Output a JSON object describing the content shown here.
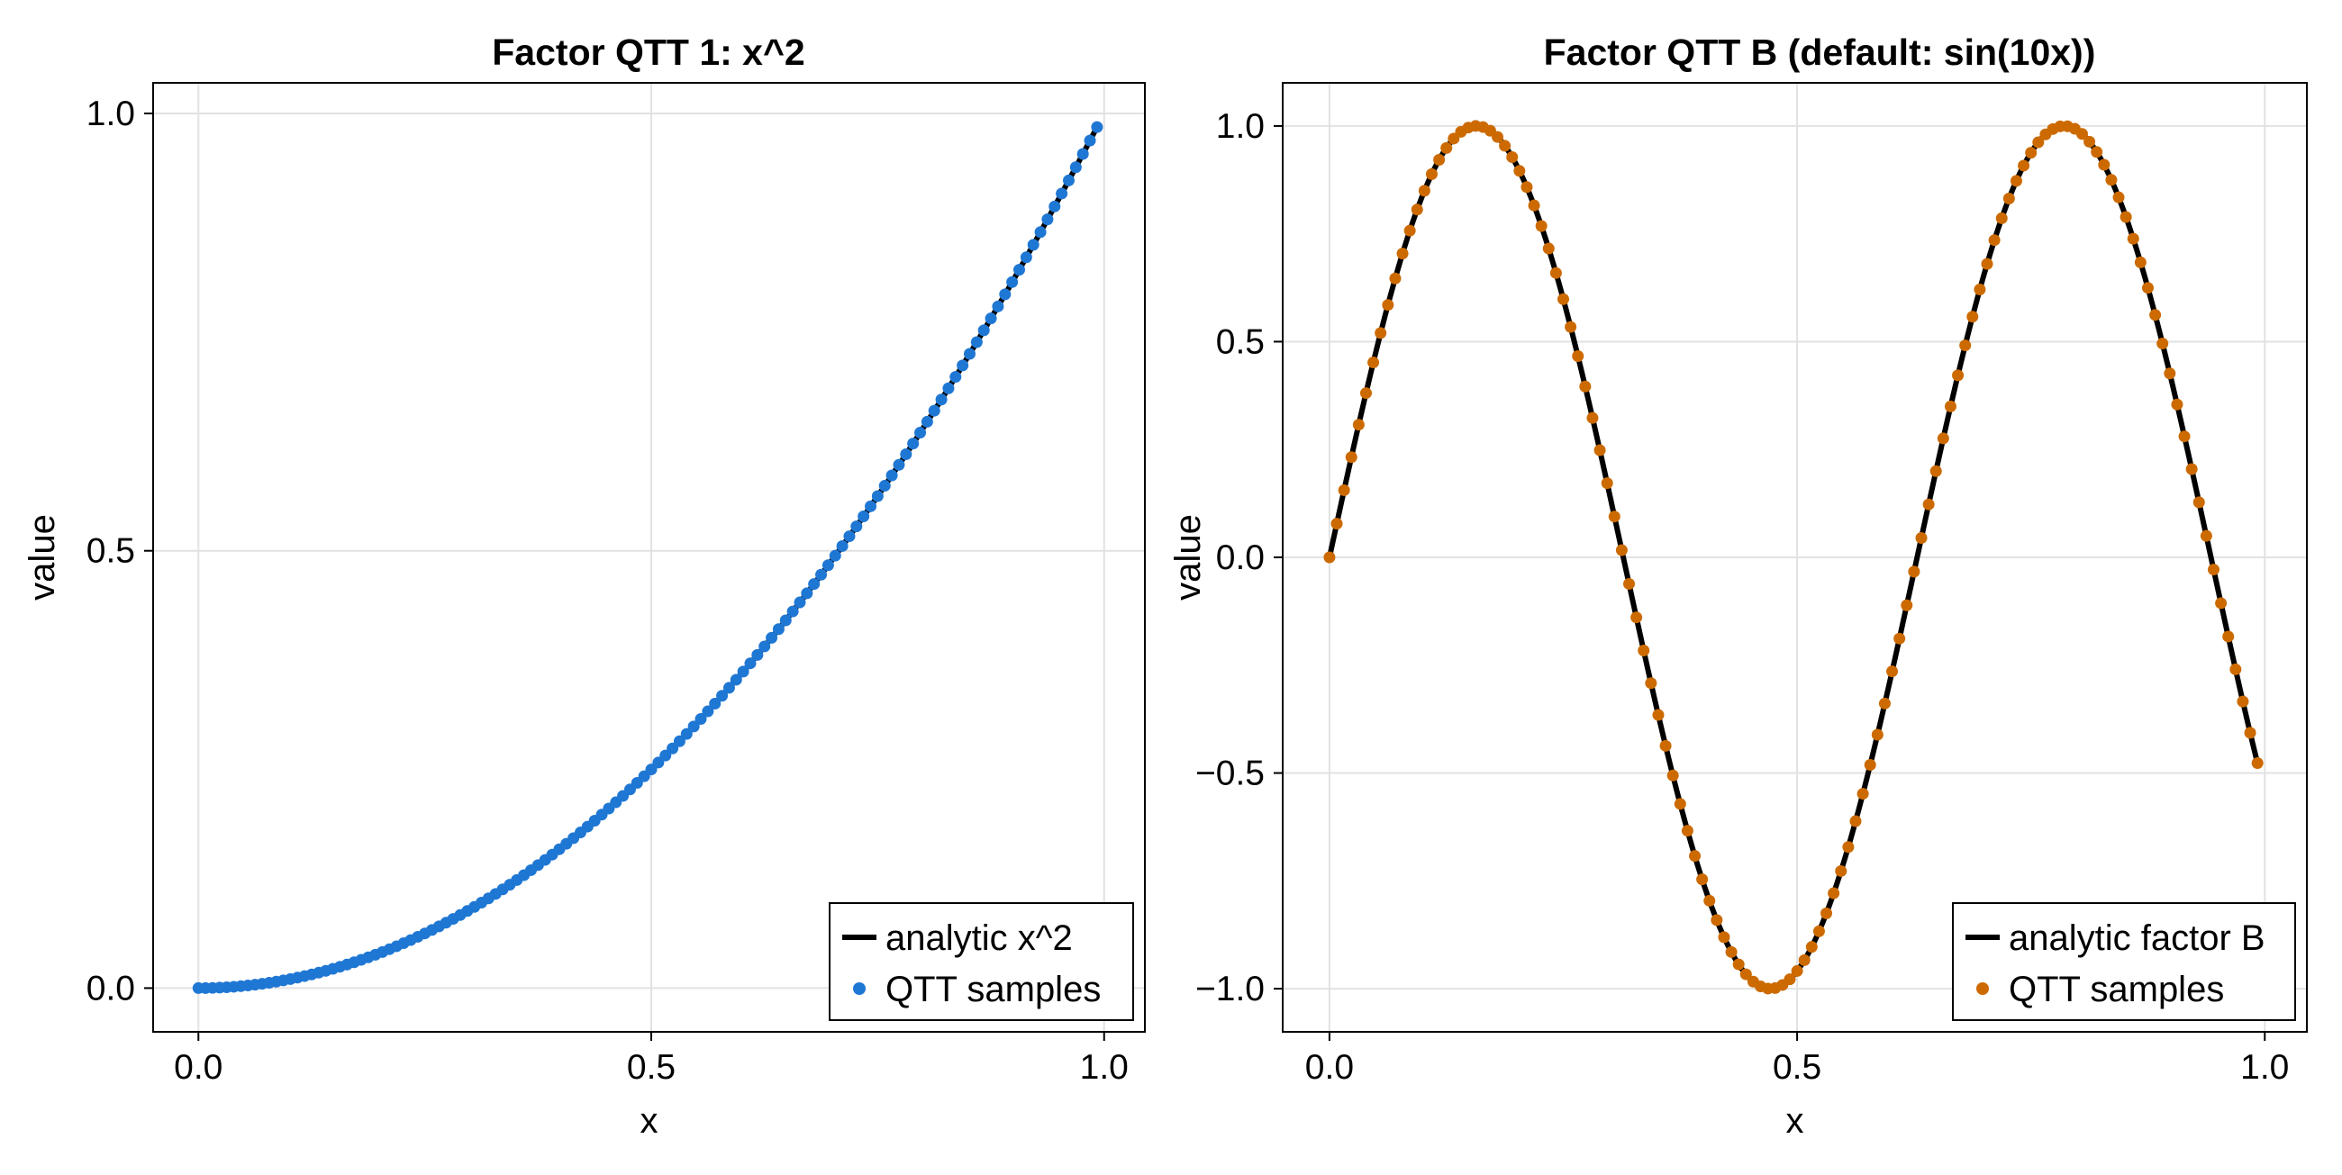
{
  "chart_data": [
    {
      "type": "line",
      "title": "Factor QTT 1: x^2",
      "xlabel": "x",
      "ylabel": "value",
      "xlim": [
        -0.05,
        1.045
      ],
      "ylim": [
        -0.05,
        1.035
      ],
      "xticks": [
        0.0,
        0.5,
        1.0
      ],
      "yticks": [
        0.0,
        0.5,
        1.0
      ],
      "xtick_labels": [
        "0.0",
        "0.5",
        "1.0"
      ],
      "ytick_labels": [
        "0.0",
        "0.5",
        "1.0"
      ],
      "grid": true,
      "legend_position": "bottom-right",
      "function": "x^2",
      "x_range": [
        0.0,
        0.9921875
      ],
      "n_samples": 128,
      "series": [
        {
          "name": "analytic x^2",
          "kind": "line",
          "color": "#000000"
        },
        {
          "name": "QTT samples",
          "kind": "scatter",
          "color": "#1f77d4"
        }
      ]
    },
    {
      "type": "line",
      "title": "Factor QTT B (default: sin(10x))",
      "xlabel": "x",
      "ylabel": "value",
      "xlim": [
        -0.05,
        1.045
      ],
      "ylim": [
        -1.1,
        1.1
      ],
      "xticks": [
        0.0,
        0.5,
        1.0
      ],
      "yticks": [
        -1.0,
        -0.5,
        0.0,
        0.5,
        1.0
      ],
      "xtick_labels": [
        "0.0",
        "0.5",
        "1.0"
      ],
      "ytick_labels": [
        "−1.0",
        "−0.5",
        "0.0",
        "0.5",
        "1.0"
      ],
      "grid": true,
      "legend_position": "bottom-right",
      "function": "sin(10x)",
      "x_range": [
        0.0,
        0.9921875
      ],
      "n_samples": 128,
      "series": [
        {
          "name": "analytic factor B",
          "kind": "line",
          "color": "#000000"
        },
        {
          "name": "QTT samples",
          "kind": "scatter",
          "color": "#cc6a00"
        }
      ]
    }
  ]
}
